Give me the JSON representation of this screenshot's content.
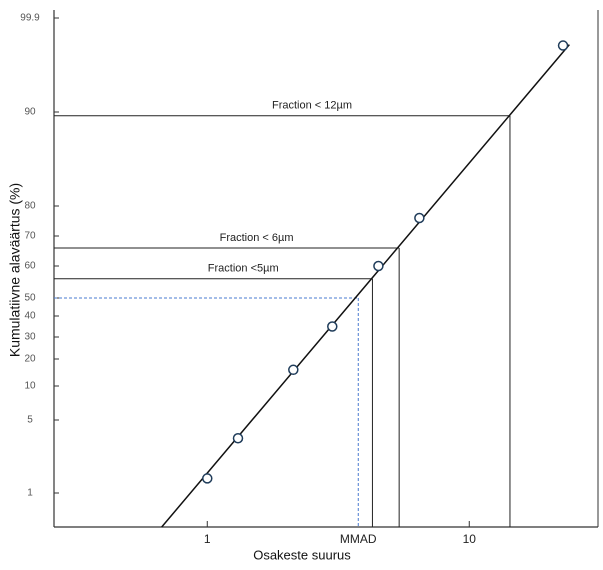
{
  "chart_data": {
    "type": "probability",
    "xlabel": "Osakeste suurus",
    "ylabel": "Kumulatiivne alaväärtus (%)",
    "xscale": "log",
    "yscale": "probability",
    "xlim": [
      0.26,
      31
    ],
    "ylim": [
      0.5,
      99.9
    ],
    "xticks": [
      1,
      10
    ],
    "yticks": [
      1,
      5,
      10,
      20,
      30,
      40,
      50,
      60,
      70,
      80,
      90,
      99.9
    ],
    "points": {
      "x": [
        1.0,
        1.31,
        2.13,
        3.0,
        4.5,
        6.45,
        22.8
      ],
      "y": [
        1.8,
        4,
        16,
        35,
        60,
        76,
        97
      ],
      "color": "#1f3c5a"
    },
    "fit_line": {
      "x": [
        0.67,
        24.1
      ],
      "y": [
        0.5,
        97.1
      ],
      "color": "#111111"
    },
    "guides": [
      {
        "label": "Fraction < 12µm",
        "x": 14.3,
        "y": 89.6,
        "color": "#222222",
        "dashed": false
      },
      {
        "label": "Fraction < 6µm",
        "x": 5.4,
        "y": 66,
        "color": "#222222",
        "dashed": false
      },
      {
        "label": "Fraction <5µm",
        "x": 4.27,
        "y": 56,
        "color": "#222222",
        "dashed": false
      },
      {
        "label": "MMAD",
        "x": 3.77,
        "y": 50,
        "color": "#4a7bd0",
        "dashed": true
      }
    ]
  }
}
